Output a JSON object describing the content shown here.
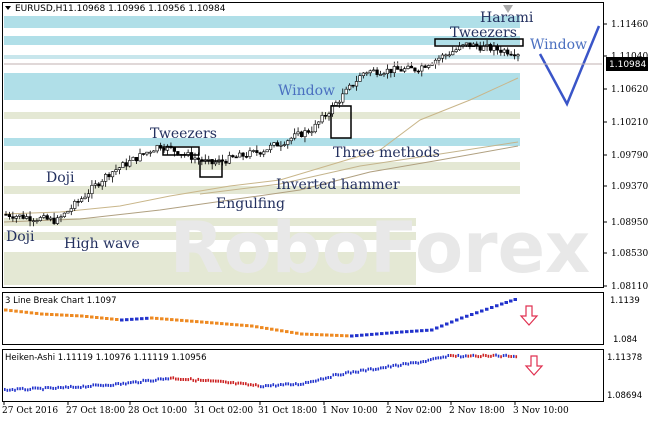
{
  "header": {
    "symbol_label": "EURUSD,H1",
    "ohlc": "1.10968 1.10996 1.10956 1.10984"
  },
  "price_axis": {
    "ticks": [
      "1.11460",
      "1.11040",
      "1.10620",
      "1.10210",
      "1.09790",
      "1.09370",
      "1.08950",
      "1.08530",
      "1.08110"
    ],
    "current_price": "1.10984"
  },
  "time_axis": {
    "labels": [
      "27 Oct 2016",
      "27 Oct 18:00",
      "28 Oct 10:00",
      "31 Oct 02:00",
      "31 Oct 18:00",
      "1 Nov 10:00",
      "2 Nov 02:00",
      "2 Nov 18:00",
      "3 Nov 10:00"
    ]
  },
  "watermark": "RoboForex",
  "annotations": {
    "doji_left": "Doji",
    "doji_top": "Doji",
    "high_wave": "High wave",
    "tweezers_left": "Tweezers",
    "engulfing": "Engulfing",
    "inverted_hammer": "Inverted hammer",
    "three_methods": "Three methods",
    "window_mid": "Window",
    "tweezers_right": "Tweezers",
    "harami": "Harami",
    "window_right": "Window"
  },
  "indicator1": {
    "title": "3 Line Break Chart 1.1097",
    "ticks": [
      "1.1139",
      "1.084"
    ]
  },
  "indicator2": {
    "title": "Heiken-Ashi 1.11119 1.10976 1.11119 1.10956",
    "ticks": [
      "1.11378",
      "1.08694"
    ]
  },
  "colors": {
    "zone": "#b0dfe8",
    "zone_light": "#e4e8d4",
    "bull": "#2233cc",
    "bear": "#ee8a22",
    "ha_bear": "#cc2222",
    "arrow": "#e03050",
    "annotation_text": "#23305f",
    "forecast": "#3a55c8"
  },
  "chart_data": {
    "type": "candlestick",
    "symbol": "EURUSD",
    "timeframe": "H1",
    "ylim": [
      1.0811,
      1.1159
    ],
    "close_path": [
      [
        "27 Oct 2016",
        1.09
      ],
      [
        "27 Oct 18:00",
        1.0892
      ],
      [
        "28 Oct 10:00",
        1.095
      ],
      [
        "28 Oct 16:00",
        1.0985
      ],
      [
        "31 Oct 02:00",
        1.0962
      ],
      [
        "31 Oct 18:00",
        1.0978
      ],
      [
        "1 Nov 10:00",
        1.1005
      ],
      [
        "1 Nov 16:00",
        1.1075
      ],
      [
        "2 Nov 02:00",
        1.1078
      ],
      [
        "2 Nov 18:00",
        1.1108
      ],
      [
        "3 Nov 10:00",
        1.1098
      ]
    ],
    "last_close": 1.10984
  }
}
